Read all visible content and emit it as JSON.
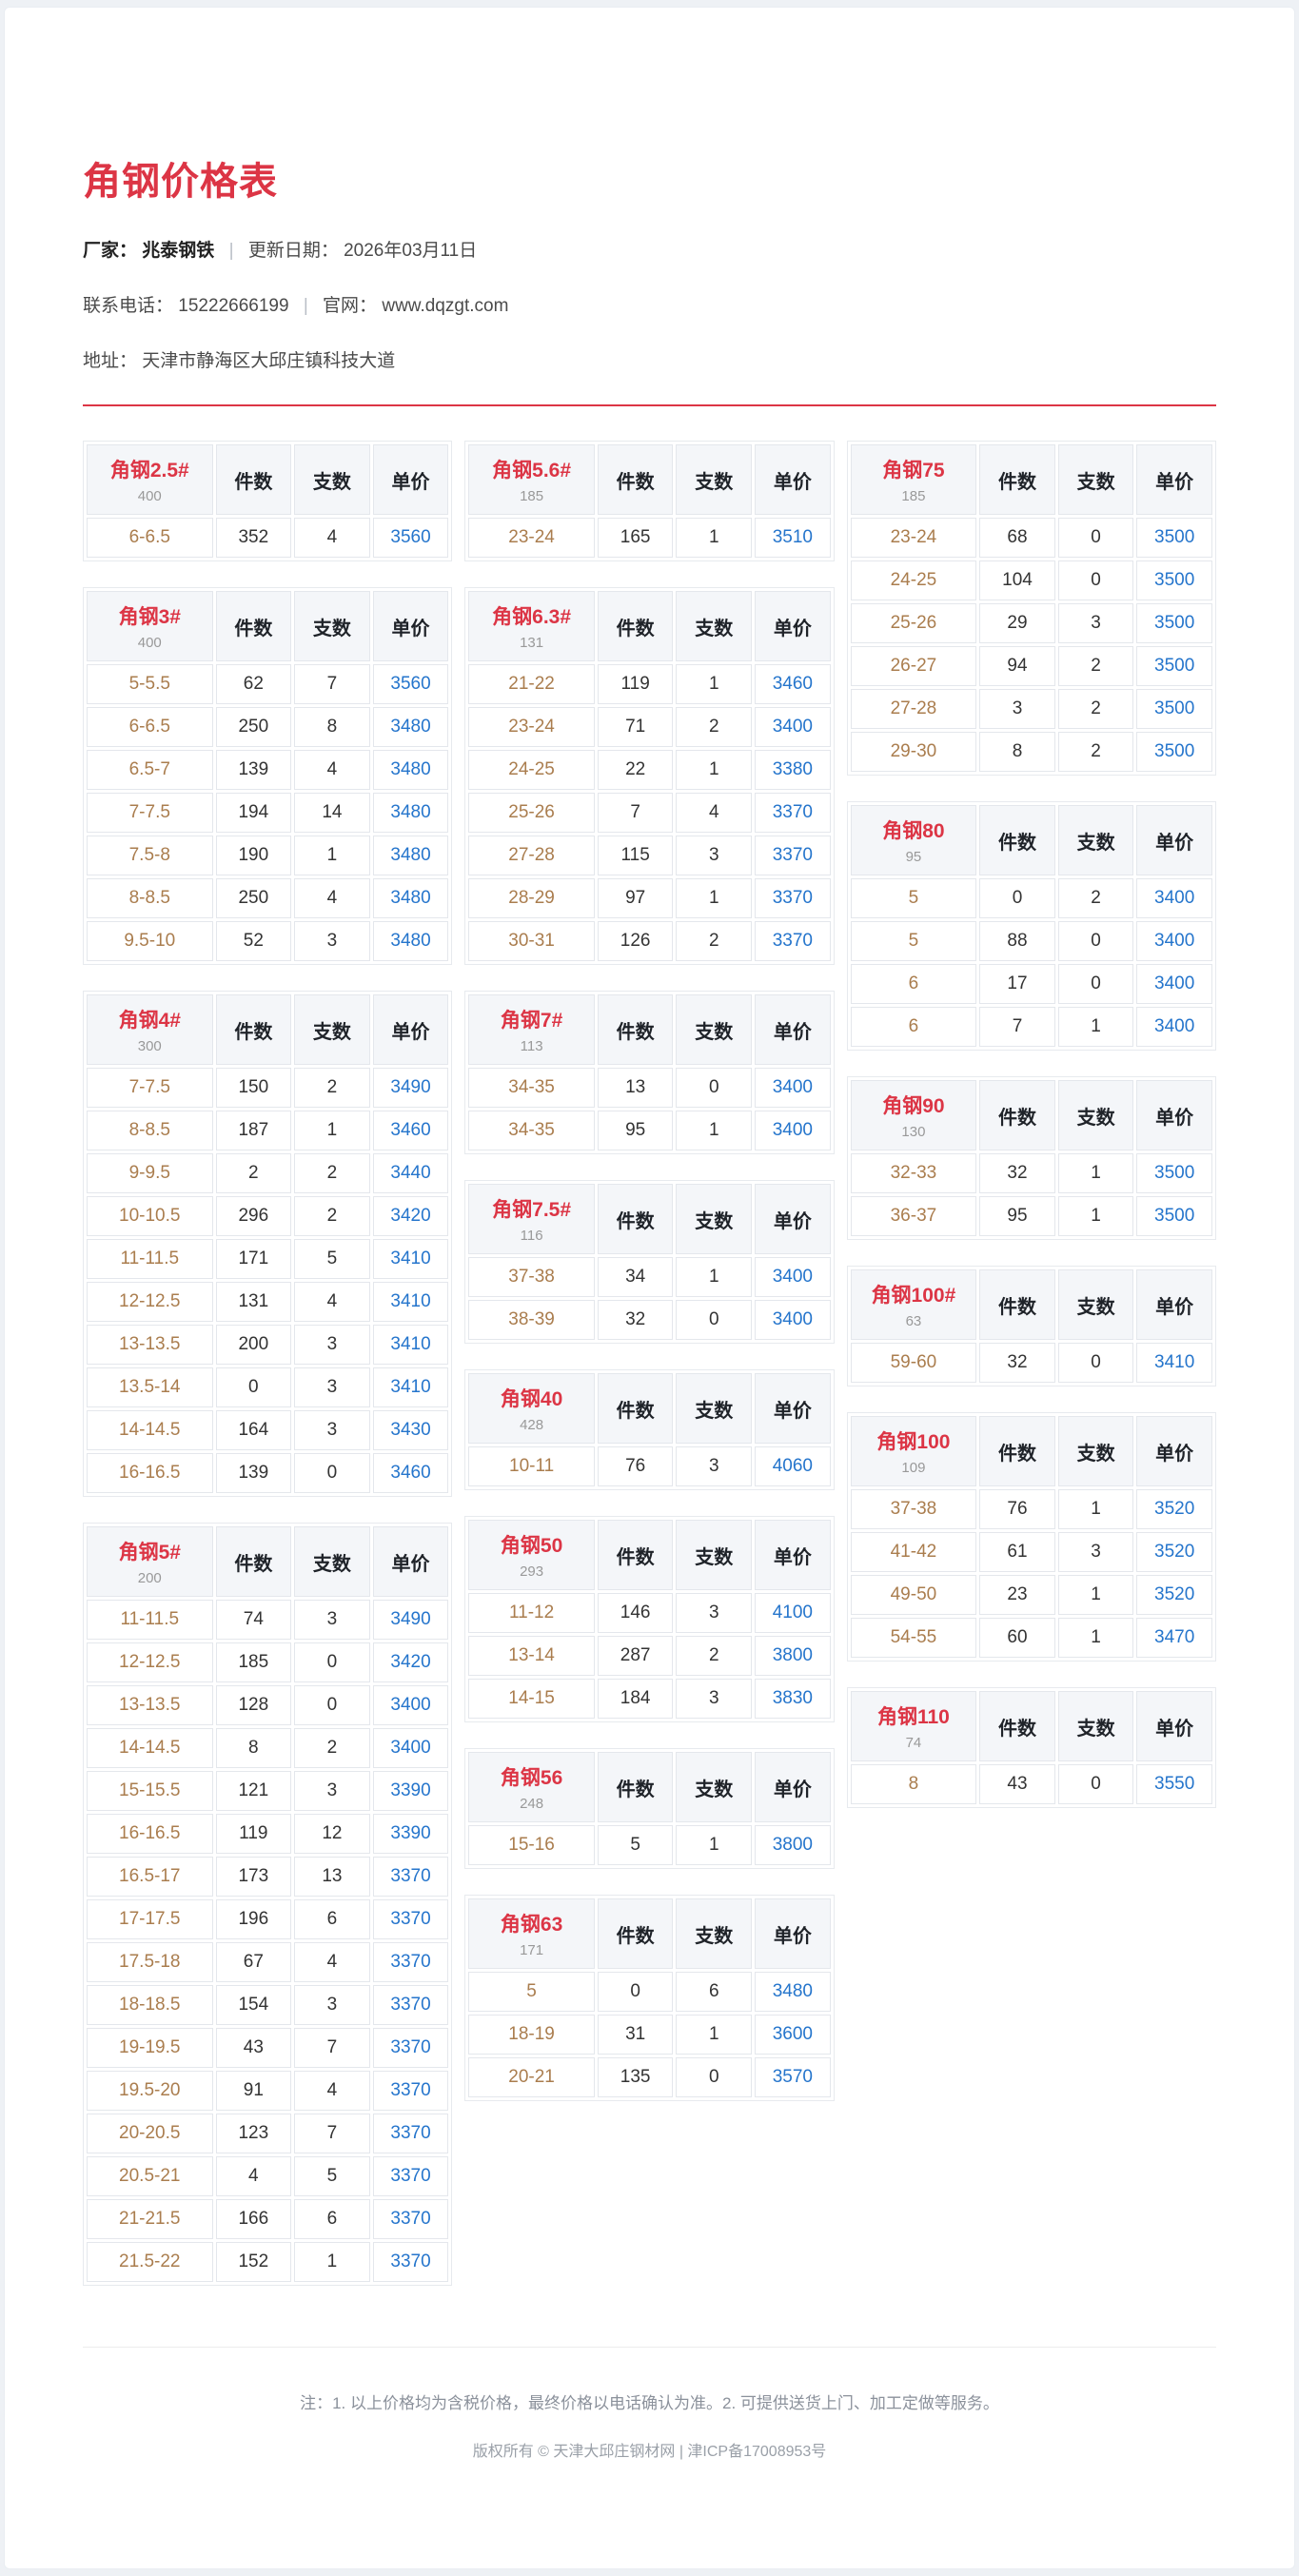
{
  "header": {
    "title": "角钢价格表",
    "factory_label": "厂家：",
    "factory": "兆泰钢铁",
    "sep": "|",
    "update_label": "更新日期：",
    "update_date": "2026年03月11日",
    "phone_label": "联系电话：",
    "phone": "15222666199",
    "site_label": "官网：",
    "site": "www.dqzgt.com",
    "address_label": "地址：",
    "address": "天津市静海区大邱庄镇科技大道"
  },
  "colors": {
    "accent_red": "#dc3545",
    "price_blue": "#2575cc",
    "size_brown": "#aa7d4e",
    "spec_gray": "#999999",
    "header_bg": "#f4f6f9",
    "page_bg": "#eef1f5"
  },
  "tables": {
    "headers": [
      "件数",
      "支数",
      "单价"
    ],
    "columns": [
      [
        {
          "name": "角钢2.5#",
          "spec": "400",
          "rows": [
            [
              "6-6.5",
              "352",
              "4",
              "3560"
            ]
          ]
        },
        {
          "name": "角钢3#",
          "spec": "400",
          "rows": [
            [
              "5-5.5",
              "62",
              "7",
              "3560"
            ],
            [
              "6-6.5",
              "250",
              "8",
              "3480"
            ],
            [
              "6.5-7",
              "139",
              "4",
              "3480"
            ],
            [
              "7-7.5",
              "194",
              "14",
              "3480"
            ],
            [
              "7.5-8",
              "190",
              "1",
              "3480"
            ],
            [
              "8-8.5",
              "250",
              "4",
              "3480"
            ],
            [
              "9.5-10",
              "52",
              "3",
              "3480"
            ]
          ]
        },
        {
          "name": "角钢4#",
          "spec": "300",
          "rows": [
            [
              "7-7.5",
              "150",
              "2",
              "3490"
            ],
            [
              "8-8.5",
              "187",
              "1",
              "3460"
            ],
            [
              "9-9.5",
              "2",
              "2",
              "3440"
            ],
            [
              "10-10.5",
              "296",
              "2",
              "3420"
            ],
            [
              "11-11.5",
              "171",
              "5",
              "3410"
            ],
            [
              "12-12.5",
              "131",
              "4",
              "3410"
            ],
            [
              "13-13.5",
              "200",
              "3",
              "3410"
            ],
            [
              "13.5-14",
              "0",
              "3",
              "3410"
            ],
            [
              "14-14.5",
              "164",
              "3",
              "3430"
            ],
            [
              "16-16.5",
              "139",
              "0",
              "3460"
            ]
          ]
        },
        {
          "name": "角钢5#",
          "spec": "200",
          "rows": [
            [
              "11-11.5",
              "74",
              "3",
              "3490"
            ],
            [
              "12-12.5",
              "185",
              "0",
              "3420"
            ],
            [
              "13-13.5",
              "128",
              "0",
              "3400"
            ],
            [
              "14-14.5",
              "8",
              "2",
              "3400"
            ],
            [
              "15-15.5",
              "121",
              "3",
              "3390"
            ],
            [
              "16-16.5",
              "119",
              "12",
              "3390"
            ],
            [
              "16.5-17",
              "173",
              "13",
              "3370"
            ],
            [
              "17-17.5",
              "196",
              "6",
              "3370"
            ],
            [
              "17.5-18",
              "67",
              "4",
              "3370"
            ],
            [
              "18-18.5",
              "154",
              "3",
              "3370"
            ],
            [
              "19-19.5",
              "43",
              "7",
              "3370"
            ],
            [
              "19.5-20",
              "91",
              "4",
              "3370"
            ],
            [
              "20-20.5",
              "123",
              "7",
              "3370"
            ],
            [
              "20.5-21",
              "4",
              "5",
              "3370"
            ],
            [
              "21-21.5",
              "166",
              "6",
              "3370"
            ],
            [
              "21.5-22",
              "152",
              "1",
              "3370"
            ]
          ]
        }
      ],
      [
        {
          "name": "角钢5.6#",
          "spec": "185",
          "rows": [
            [
              "23-24",
              "165",
              "1",
              "3510"
            ]
          ]
        },
        {
          "name": "角钢6.3#",
          "spec": "131",
          "rows": [
            [
              "21-22",
              "119",
              "1",
              "3460"
            ],
            [
              "23-24",
              "71",
              "2",
              "3400"
            ],
            [
              "24-25",
              "22",
              "1",
              "3380"
            ],
            [
              "25-26",
              "7",
              "4",
              "3370"
            ],
            [
              "27-28",
              "115",
              "3",
              "3370"
            ],
            [
              "28-29",
              "97",
              "1",
              "3370"
            ],
            [
              "30-31",
              "126",
              "2",
              "3370"
            ]
          ]
        },
        {
          "name": "角钢7#",
          "spec": "113",
          "rows": [
            [
              "34-35",
              "13",
              "0",
              "3400"
            ],
            [
              "34-35",
              "95",
              "1",
              "3400"
            ]
          ]
        },
        {
          "name": "角钢7.5#",
          "spec": "116",
          "rows": [
            [
              "37-38",
              "34",
              "1",
              "3400"
            ],
            [
              "38-39",
              "32",
              "0",
              "3400"
            ]
          ]
        },
        {
          "name": "角钢40",
          "spec": "428",
          "rows": [
            [
              "10-11",
              "76",
              "3",
              "4060"
            ]
          ]
        },
        {
          "name": "角钢50",
          "spec": "293",
          "rows": [
            [
              "11-12",
              "146",
              "3",
              "4100"
            ],
            [
              "13-14",
              "287",
              "2",
              "3800"
            ],
            [
              "14-15",
              "184",
              "3",
              "3830"
            ]
          ]
        },
        {
          "name": "角钢56",
          "spec": "248",
          "rows": [
            [
              "15-16",
              "5",
              "1",
              "3800"
            ]
          ]
        },
        {
          "name": "角钢63",
          "spec": "171",
          "rows": [
            [
              "5",
              "0",
              "6",
              "3480"
            ],
            [
              "18-19",
              "31",
              "1",
              "3600"
            ],
            [
              "20-21",
              "135",
              "0",
              "3570"
            ]
          ]
        }
      ],
      [
        {
          "name": "角钢75",
          "spec": "185",
          "rows": [
            [
              "23-24",
              "68",
              "0",
              "3500"
            ],
            [
              "24-25",
              "104",
              "0",
              "3500"
            ],
            [
              "25-26",
              "29",
              "3",
              "3500"
            ],
            [
              "26-27",
              "94",
              "2",
              "3500"
            ],
            [
              "27-28",
              "3",
              "2",
              "3500"
            ],
            [
              "29-30",
              "8",
              "2",
              "3500"
            ]
          ]
        },
        {
          "name": "角钢80",
          "spec": "95",
          "rows": [
            [
              "5",
              "0",
              "2",
              "3400"
            ],
            [
              "5",
              "88",
              "0",
              "3400"
            ],
            [
              "6",
              "17",
              "0",
              "3400"
            ],
            [
              "6",
              "7",
              "1",
              "3400"
            ]
          ]
        },
        {
          "name": "角钢90",
          "spec": "130",
          "rows": [
            [
              "32-33",
              "32",
              "1",
              "3500"
            ],
            [
              "36-37",
              "95",
              "1",
              "3500"
            ]
          ]
        },
        {
          "name": "角钢100#",
          "spec": "63",
          "rows": [
            [
              "59-60",
              "32",
              "0",
              "3410"
            ]
          ]
        },
        {
          "name": "角钢100",
          "spec": "109",
          "rows": [
            [
              "37-38",
              "76",
              "1",
              "3520"
            ],
            [
              "41-42",
              "61",
              "3",
              "3520"
            ],
            [
              "49-50",
              "23",
              "1",
              "3520"
            ],
            [
              "54-55",
              "60",
              "1",
              "3470"
            ]
          ]
        },
        {
          "name": "角钢110",
          "spec": "74",
          "rows": [
            [
              "8",
              "43",
              "0",
              "3550"
            ]
          ]
        }
      ]
    ]
  },
  "footer": {
    "note": "注：1. 以上价格均为含税价格，最终价格以电话确认为准。2. 可提供送货上门、加工定做等服务。",
    "copyright": "版权所有 © 天津大邱庄钢材网 | 津ICP备17008953号"
  }
}
